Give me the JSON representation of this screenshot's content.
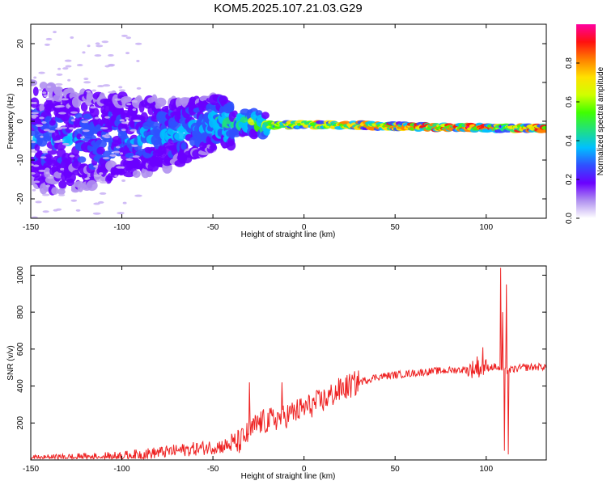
{
  "title": "KOM5.2025.107.21.03.G29",
  "chart_data": [
    {
      "type": "heatmap",
      "name": "spectrogram",
      "xlabel": "Height of straight line (km)",
      "ylabel": "Frequency (Hz)",
      "xlim": [
        -150,
        133
      ],
      "ylim": [
        -25,
        25
      ],
      "xticks": [
        -150,
        -100,
        -50,
        0,
        50,
        100
      ],
      "yticks": [
        -20,
        -10,
        0,
        10,
        20
      ],
      "colorbar": {
        "label": "Normalized spectral amplitude",
        "range": [
          0,
          1
        ],
        "ticks": [
          0.0,
          0.2,
          0.4,
          0.6,
          0.8
        ],
        "tick_labels": [
          "0.0",
          "0.2",
          "0.4",
          "0.6",
          "0.8"
        ],
        "colors": [
          "#ffffff",
          "#b090f0",
          "#6a00ff",
          "#3050ff",
          "#00c0ff",
          "#20e080",
          "#40ff00",
          "#d0ff00",
          "#ffe000",
          "#ff8000",
          "#ff1010",
          "#ff00a0"
        ]
      },
      "ridge": {
        "x": [
          -150,
          -130,
          -110,
          -90,
          -70,
          -55,
          -45,
          -40,
          -35,
          -30,
          -25,
          -20,
          -10,
          0,
          10,
          20,
          30,
          40,
          50,
          60,
          70,
          80,
          90,
          100,
          105,
          108,
          110,
          112,
          115,
          120,
          133
        ],
        "freq": [
          -4,
          -5,
          -4.5,
          -4,
          -3,
          -1,
          0,
          -1,
          -0.5,
          0,
          -0.5,
          -1,
          -1,
          -0.8,
          -1,
          -1,
          -1,
          -1.2,
          -1.3,
          -1.4,
          -1.5,
          -1.5,
          -1.6,
          -1.7,
          -1.8,
          -1.8,
          -1.8,
          -1.7,
          -1.8,
          -1.8,
          -1.8
        ],
        "amplitude": [
          0.3,
          0.32,
          0.33,
          0.34,
          0.36,
          0.38,
          0.45,
          0.5,
          0.52,
          0.55,
          0.6,
          0.62,
          0.66,
          0.72,
          0.75,
          0.78,
          0.8,
          0.82,
          0.84,
          0.86,
          0.88,
          0.9,
          0.92,
          0.94,
          0.85,
          0.5,
          0.55,
          0.6,
          0.8,
          0.85,
          0.88
        ]
      }
    },
    {
      "type": "line",
      "name": "snr",
      "xlabel": "Height of straight line (km)",
      "ylabel": "SNR (v/v)",
      "xlim": [
        -150,
        133
      ],
      "ylim": [
        0,
        1050
      ],
      "xticks": [
        -150,
        -100,
        -50,
        0,
        50,
        100
      ],
      "yticks": [
        200,
        400,
        600,
        800,
        1000
      ],
      "color": "#ee2222",
      "trend": {
        "x": [
          -150,
          -120,
          -100,
          -80,
          -60,
          -50,
          -40,
          -35,
          -30,
          -25,
          -20,
          -10,
          0,
          10,
          20,
          30,
          40,
          50,
          60,
          70,
          80,
          90,
          100,
          105,
          110,
          115,
          120,
          133
        ],
        "y": [
          10,
          15,
          20,
          40,
          60,
          70,
          80,
          100,
          150,
          200,
          210,
          240,
          280,
          320,
          380,
          420,
          450,
          460,
          470,
          480,
          485,
          490,
          500,
          505,
          480,
          490,
          500,
          505
        ]
      },
      "spikes": [
        {
          "x": 108,
          "y": 1040
        },
        {
          "x": 109,
          "y": 800
        },
        {
          "x": 110,
          "y": 50
        },
        {
          "x": 111,
          "y": 950
        },
        {
          "x": 112,
          "y": 30
        },
        {
          "x": 98,
          "y": 610
        },
        {
          "x": 95,
          "y": 560
        },
        {
          "x": -30,
          "y": 420
        },
        {
          "x": -12,
          "y": 420
        }
      ]
    }
  ]
}
